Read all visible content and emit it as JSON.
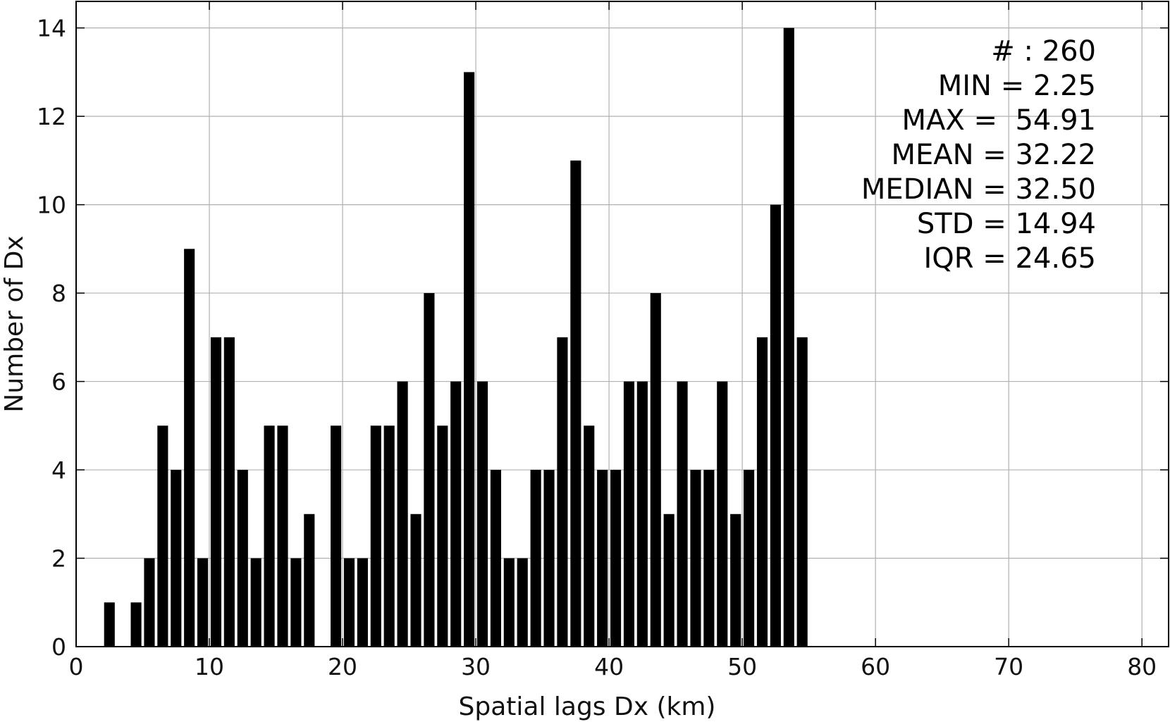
{
  "chart_data": {
    "type": "bar",
    "title": "",
    "xlabel": "Spatial lags Dx (km)",
    "ylabel": "Number of Dx",
    "xlim": [
      0,
      82
    ],
    "ylim": [
      0,
      14.6
    ],
    "grid": true,
    "xticks": [
      0,
      10,
      20,
      30,
      40,
      50,
      60,
      70,
      80
    ],
    "yticks": [
      0,
      2,
      4,
      6,
      8,
      10,
      12,
      14
    ],
    "bar_width": 0.8,
    "bar_color": "#000000",
    "x": [
      2.5,
      4.5,
      5.5,
      6.5,
      7.5,
      8.5,
      9.5,
      10.5,
      11.5,
      12.5,
      13.5,
      14.5,
      15.5,
      16.5,
      17.5,
      19.5,
      20.5,
      21.5,
      22.5,
      23.5,
      24.5,
      25.5,
      26.5,
      27.5,
      28.5,
      29.5,
      30.5,
      31.5,
      32.5,
      33.5,
      34.5,
      35.5,
      36.5,
      37.5,
      38.5,
      39.5,
      40.5,
      41.5,
      42.5,
      43.5,
      44.5,
      45.5,
      46.5,
      47.5,
      48.5,
      49.5,
      50.5,
      51.5,
      52.5,
      53.5,
      54.5
    ],
    "values": [
      1,
      1,
      2,
      5,
      4,
      9,
      2,
      7,
      7,
      4,
      2,
      5,
      5,
      2,
      3,
      5,
      2,
      2,
      5,
      5,
      6,
      3,
      8,
      5,
      6,
      13,
      6,
      4,
      2,
      2,
      4,
      4,
      7,
      11,
      5,
      4,
      4,
      6,
      6,
      8,
      3,
      6,
      4,
      4,
      6,
      3,
      4,
      7,
      10,
      14,
      7
    ],
    "annotations": [
      "# : 260",
      "MIN = 2.25",
      "MAX =  54.91",
      "MEAN = 32.22",
      "MEDIAN = 32.50",
      "STD = 14.94",
      "IQR = 24.65"
    ]
  }
}
